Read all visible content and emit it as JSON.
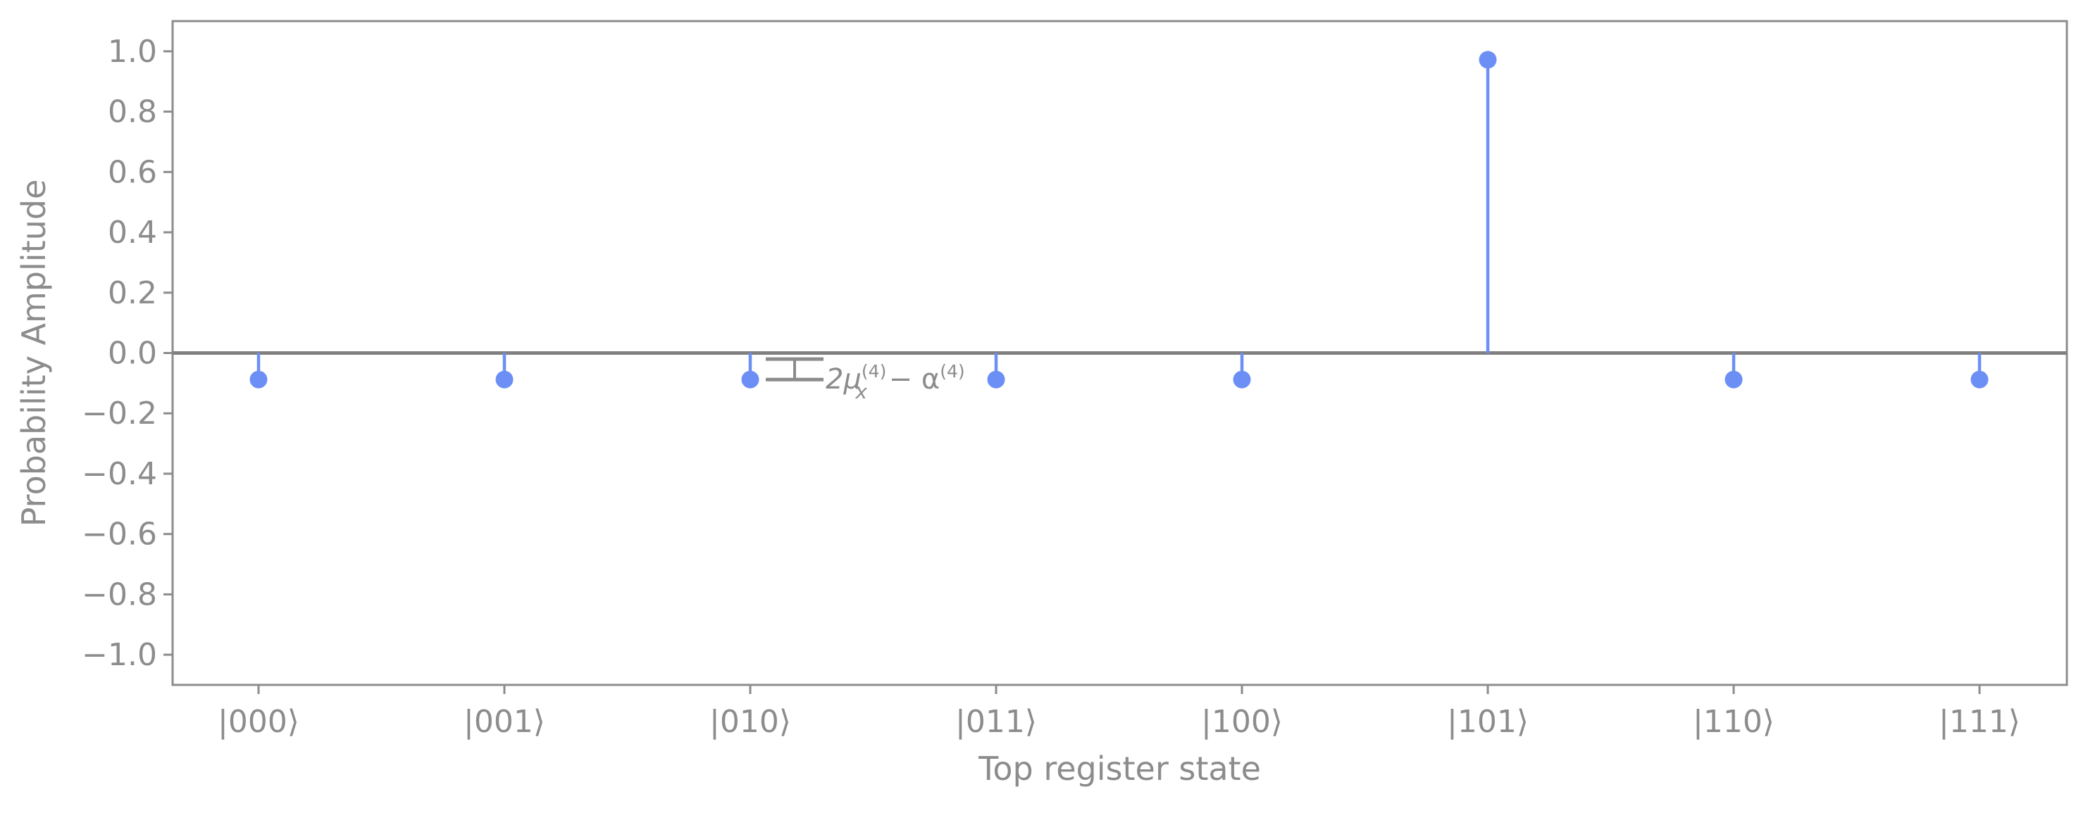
{
  "chart_data": {
    "type": "stem",
    "title": "",
    "xlabel": "Top register state",
    "ylabel": "Probability Amplitude",
    "categories": [
      "|000⟩",
      "|001⟩",
      "|010⟩",
      "|011⟩",
      "|100⟩",
      "|101⟩",
      "|110⟩",
      "|111⟩"
    ],
    "values": [
      -0.088,
      -0.088,
      -0.088,
      -0.088,
      -0.088,
      0.972,
      -0.088,
      -0.088
    ],
    "ylim": [
      -1.1,
      1.1
    ],
    "yticks": [
      1.0,
      0.8,
      0.6,
      0.4,
      0.2,
      0.0,
      -0.2,
      -0.4,
      -0.6,
      -0.8,
      -1.0
    ],
    "ytick_labels": [
      "1.0",
      "0.8",
      "0.6",
      "0.4",
      "0.2",
      "0.0",
      "−0.2",
      "−0.4",
      "−0.6",
      "−0.8",
      "−1.0"
    ],
    "baseline": 0.0,
    "grid": false,
    "annotation": {
      "between_categories": [
        "|010⟩",
        "|011⟩"
      ],
      "top": -0.02,
      "bottom": -0.088,
      "text_main": "2μ",
      "text_sub": "x",
      "text_sup1": "(4)",
      "text_mid": " − α",
      "text_sup2": "(4)"
    },
    "colors": {
      "stem": "#6b8ff5",
      "marker": "#6b8ff5",
      "baseline": "#808080",
      "axis": "#8c8c8c",
      "text": "#8c8c8c",
      "annotation": "#8c8c8c"
    }
  }
}
